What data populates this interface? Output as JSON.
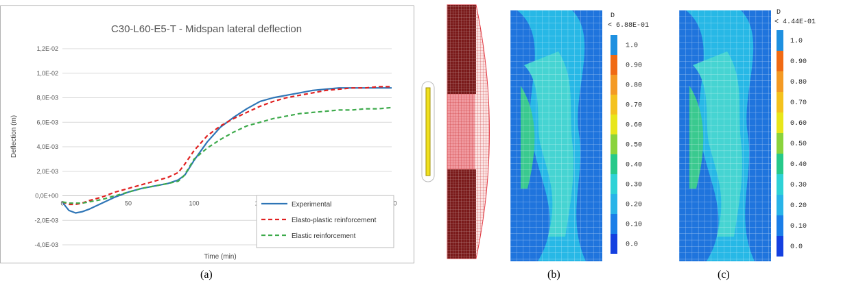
{
  "chart_data": {
    "type": "line",
    "title": "C30-L60-E5-T - Midspan lateral deflection",
    "xlabel": "Time (min)",
    "ylabel": "Deflection (m)",
    "xlim": [
      0,
      250
    ],
    "ylim": [
      -0.004,
      0.012
    ],
    "x_ticks": [
      "0",
      "50",
      "100",
      "150",
      "200",
      "250"
    ],
    "y_ticks": [
      "-4,0E-03",
      "-2,0E-03",
      "0,0E+00",
      "2,0E-03",
      "4,0E-03",
      "6,0E-03",
      "8,0E-03",
      "1,0E-02",
      "1,2E-02"
    ],
    "grid": "horizontal",
    "legend_position": "bottom-right",
    "series": [
      {
        "name": "Experimental",
        "color": "#2e75b6",
        "style": "solid",
        "x": [
          0,
          2,
          5,
          10,
          15,
          20,
          30,
          40,
          50,
          60,
          70,
          80,
          88,
          93,
          100,
          110,
          120,
          130,
          140,
          150,
          160,
          170,
          180,
          190,
          200,
          210,
          220,
          230,
          240,
          250
        ],
        "y": [
          -0.0005,
          -0.0008,
          -0.0012,
          -0.0014,
          -0.0013,
          -0.0011,
          -0.0006,
          -0.0001,
          0.0003,
          0.0006,
          0.0008,
          0.001,
          0.0013,
          0.0017,
          0.0029,
          0.0044,
          0.0056,
          0.0064,
          0.0071,
          0.0077,
          0.008,
          0.0082,
          0.0084,
          0.0086,
          0.0087,
          0.0088,
          0.0088,
          0.0088,
          0.0088,
          0.0088
        ]
      },
      {
        "name": "Elasto-plastic reinforcement",
        "color": "#e02020",
        "style": "dashed",
        "x": [
          0,
          5,
          10,
          15,
          20,
          30,
          40,
          50,
          60,
          70,
          80,
          88,
          93,
          100,
          110,
          120,
          130,
          140,
          150,
          160,
          170,
          180,
          190,
          200,
          210,
          220,
          230,
          240,
          250
        ],
        "y": [
          -0.0005,
          -0.0007,
          -0.0007,
          -0.0006,
          -0.0004,
          -0.0001,
          0.0003,
          0.0006,
          0.0009,
          0.0012,
          0.0015,
          0.0019,
          0.0026,
          0.0037,
          0.0049,
          0.0057,
          0.0063,
          0.0068,
          0.0073,
          0.0077,
          0.008,
          0.0082,
          0.0084,
          0.0086,
          0.0087,
          0.0088,
          0.0088,
          0.0089,
          0.0089
        ]
      },
      {
        "name": "Elastic reinforcement",
        "color": "#3daa4b",
        "style": "dashed",
        "x": [
          0,
          5,
          10,
          15,
          20,
          30,
          40,
          50,
          60,
          70,
          80,
          88,
          92,
          95,
          100,
          110,
          120,
          130,
          140,
          150,
          160,
          170,
          180,
          190,
          200,
          210,
          220,
          230,
          240,
          250
        ],
        "y": [
          -0.0005,
          -0.0006,
          -0.0006,
          -0.0006,
          -0.0005,
          -0.0003,
          0.0,
          0.0003,
          0.0006,
          0.0008,
          0.001,
          0.0012,
          0.0016,
          0.0021,
          0.003,
          0.0039,
          0.0046,
          0.0052,
          0.0057,
          0.006,
          0.0063,
          0.0065,
          0.0067,
          0.0068,
          0.0069,
          0.007,
          0.007,
          0.0071,
          0.0071,
          0.0072
        ]
      }
    ]
  },
  "labels": {
    "a": "(a)",
    "b": "(b)",
    "c": "(c)"
  },
  "contour_b": {
    "label_var": "D",
    "max_text": "< 6.88E-01",
    "scale": [
      "1.0",
      "0.90",
      "0.80",
      "0.70",
      "0.60",
      "0.50",
      "0.40",
      "0.30",
      "0.20",
      "0.10",
      "0.0"
    ]
  },
  "contour_c": {
    "label_var": "D",
    "max_text": "< 4.44E-01",
    "scale": [
      "1.0",
      "0.90",
      "0.80",
      "0.70",
      "0.60",
      "0.50",
      "0.40",
      "0.30",
      "0.20",
      "0.10",
      "0.0"
    ]
  },
  "colorbar_colors": [
    "#1e90e0",
    "#f06a14",
    "#f49a24",
    "#f4c21e",
    "#e8e61a",
    "#8ad33c",
    "#26c98a",
    "#2ed2d6",
    "#28b4e8",
    "#1a7ee8",
    "#1440e0"
  ],
  "contour_colors": {
    "outer": "#1f74dd",
    "mid": "#27b8e6",
    "inner": "#46d4d2",
    "core": "#3ac98f"
  },
  "mesh_colors": {
    "dark": "#7a1a1a",
    "red": "#e5404a",
    "yellow": "#f0e020"
  }
}
